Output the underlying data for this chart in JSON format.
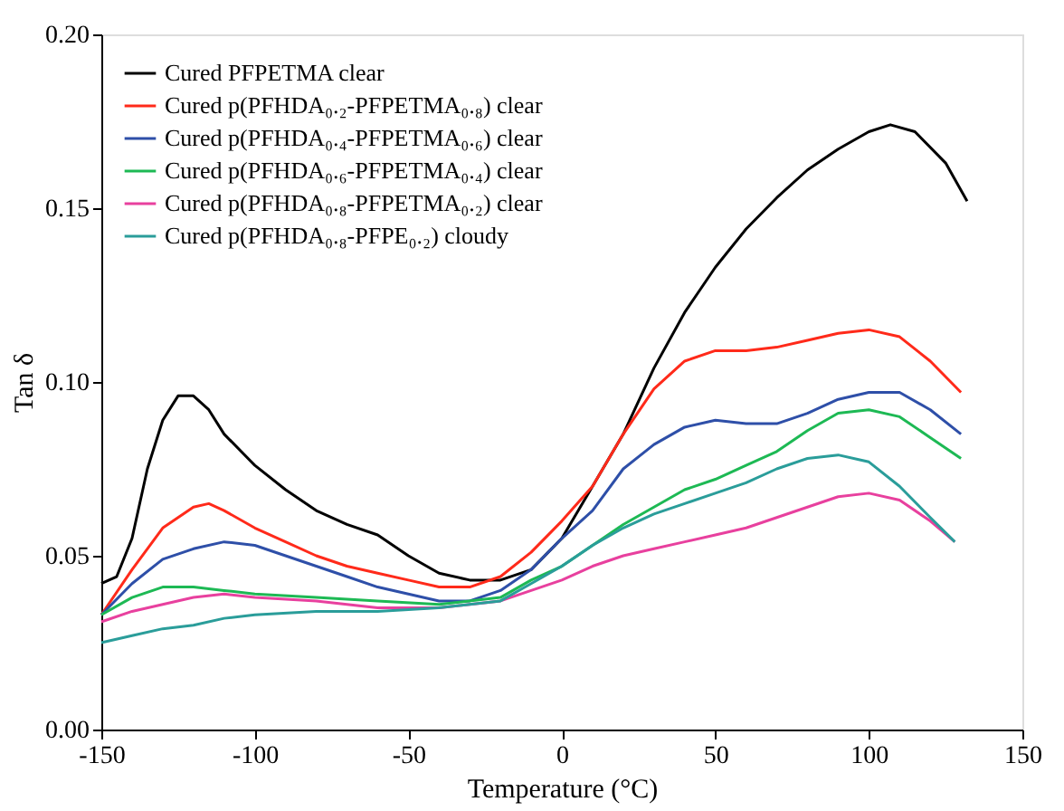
{
  "chart_data": {
    "type": "line",
    "xlabel": "Temperature (°C)",
    "ylabel": "Tan δ",
    "xlim": [
      -150,
      150
    ],
    "xticks": [
      -150,
      -100,
      -50,
      0,
      50,
      100,
      150
    ],
    "ylim": [
      0,
      0.2
    ],
    "yticks": [
      {
        "value": 0,
        "label": "0.00"
      },
      {
        "value": 0.05,
        "label": "0.05"
      },
      {
        "value": 0.1,
        "label": "0.10"
      },
      {
        "value": 0.15,
        "label": "0.15"
      },
      {
        "value": 0.2,
        "label": "0.20"
      }
    ],
    "grid": false,
    "legend": "top left",
    "marker": "none",
    "line_style": "solid",
    "series": [
      {
        "name": "Cured PFPETMA clear",
        "color": "#000000",
        "x": [
          -150,
          -145,
          -140,
          -135,
          -130,
          -125,
          -120,
          -115,
          -110,
          -100,
          -90,
          -80,
          -70,
          -60,
          -50,
          -40,
          -30,
          -20,
          -10,
          0,
          10,
          20,
          30,
          40,
          50,
          60,
          70,
          80,
          90,
          100,
          107,
          115,
          125,
          132
        ],
        "values": [
          0.042,
          0.044,
          0.055,
          0.075,
          0.089,
          0.096,
          0.096,
          0.092,
          0.085,
          0.076,
          0.069,
          0.063,
          0.059,
          0.056,
          0.05,
          0.045,
          0.043,
          0.043,
          0.046,
          0.055,
          0.07,
          0.085,
          0.104,
          0.12,
          0.133,
          0.144,
          0.153,
          0.161,
          0.167,
          0.172,
          0.174,
          0.172,
          0.163,
          0.152
        ]
      },
      {
        "name": "Cured p(PFHDA₀.₂-PFPETMA₀.₈) clear",
        "color": "#ff2a1a",
        "x": [
          -150,
          -140,
          -130,
          -120,
          -115,
          -110,
          -100,
          -90,
          -80,
          -70,
          -60,
          -50,
          -40,
          -30,
          -20,
          -10,
          0,
          10,
          20,
          30,
          40,
          50,
          60,
          70,
          80,
          90,
          100,
          110,
          120,
          130
        ],
        "values": [
          0.033,
          0.046,
          0.058,
          0.064,
          0.065,
          0.063,
          0.058,
          0.054,
          0.05,
          0.047,
          0.045,
          0.043,
          0.041,
          0.041,
          0.044,
          0.051,
          0.06,
          0.07,
          0.085,
          0.098,
          0.106,
          0.109,
          0.109,
          0.11,
          0.112,
          0.114,
          0.115,
          0.113,
          0.106,
          0.097
        ]
      },
      {
        "name": "Cured p(PFHDA₀.₄-PFPETMA₀.₆) clear",
        "color": "#2e4fa8",
        "x": [
          -150,
          -140,
          -130,
          -120,
          -110,
          -100,
          -90,
          -80,
          -70,
          -60,
          -50,
          -40,
          -30,
          -20,
          -10,
          0,
          10,
          20,
          30,
          40,
          50,
          60,
          70,
          80,
          90,
          100,
          110,
          120,
          130
        ],
        "values": [
          0.033,
          0.042,
          0.049,
          0.052,
          0.054,
          0.053,
          0.05,
          0.047,
          0.044,
          0.041,
          0.039,
          0.037,
          0.037,
          0.04,
          0.046,
          0.055,
          0.063,
          0.075,
          0.082,
          0.087,
          0.089,
          0.088,
          0.088,
          0.091,
          0.095,
          0.097,
          0.097,
          0.092,
          0.085
        ]
      },
      {
        "name": "Cured p(PFHDA₀.₆-PFPETMA₀.₄) clear",
        "color": "#1db954",
        "x": [
          -150,
          -140,
          -130,
          -120,
          -110,
          -100,
          -80,
          -60,
          -40,
          -20,
          -10,
          0,
          10,
          20,
          30,
          40,
          50,
          60,
          70,
          80,
          90,
          100,
          110,
          120,
          130
        ],
        "values": [
          0.033,
          0.038,
          0.041,
          0.041,
          0.04,
          0.039,
          0.038,
          0.037,
          0.036,
          0.038,
          0.043,
          0.047,
          0.053,
          0.059,
          0.064,
          0.069,
          0.072,
          0.076,
          0.08,
          0.086,
          0.091,
          0.092,
          0.09,
          0.084,
          0.078
        ]
      },
      {
        "name": "Cured p(PFHDA₀.₈-PFPETMA₀.₂) clear",
        "color": "#e8409e",
        "x": [
          -150,
          -140,
          -130,
          -120,
          -110,
          -100,
          -80,
          -60,
          -40,
          -20,
          -10,
          0,
          10,
          20,
          30,
          40,
          50,
          60,
          70,
          80,
          90,
          100,
          110,
          120,
          128
        ],
        "values": [
          0.031,
          0.034,
          0.036,
          0.038,
          0.039,
          0.038,
          0.037,
          0.035,
          0.035,
          0.037,
          0.04,
          0.043,
          0.047,
          0.05,
          0.052,
          0.054,
          0.056,
          0.058,
          0.061,
          0.064,
          0.067,
          0.068,
          0.066,
          0.06,
          0.054
        ]
      },
      {
        "name": "Cured p(PFHDA₀.₈-PFPE₀.₂) cloudy",
        "color": "#2a9d9a",
        "x": [
          -150,
          -140,
          -130,
          -120,
          -110,
          -100,
          -80,
          -60,
          -40,
          -20,
          -10,
          0,
          10,
          20,
          30,
          40,
          50,
          60,
          70,
          80,
          90,
          100,
          110,
          120,
          128
        ],
        "values": [
          0.025,
          0.027,
          0.029,
          0.03,
          0.032,
          0.033,
          0.034,
          0.034,
          0.035,
          0.037,
          0.042,
          0.047,
          0.053,
          0.058,
          0.062,
          0.065,
          0.068,
          0.071,
          0.075,
          0.078,
          0.079,
          0.077,
          0.07,
          0.061,
          0.054
        ]
      }
    ]
  }
}
